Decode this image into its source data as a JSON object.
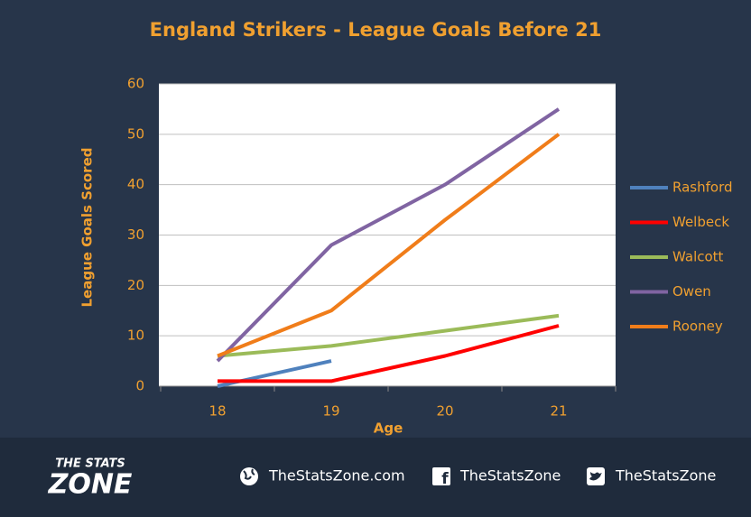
{
  "chart_data": {
    "type": "line",
    "title": "England Strikers - League Goals Before 21",
    "x_label": "Age",
    "y_label": "League Goals Scored",
    "categories": [
      "18",
      "19",
      "20",
      "21"
    ],
    "series": [
      {
        "name": "Rashford",
        "color": "#4f81bd",
        "values": [
          0,
          5,
          null,
          null
        ]
      },
      {
        "name": "Welbeck",
        "color": "#ff0000",
        "values": [
          1,
          1,
          6,
          12
        ]
      },
      {
        "name": "Walcott",
        "color": "#9bbb59",
        "values": [
          6,
          8,
          11,
          14
        ]
      },
      {
        "name": "Owen",
        "color": "#8064a2",
        "values": [
          5,
          28,
          40,
          55
        ]
      },
      {
        "name": "Rooney",
        "color": "#f07d1a",
        "values": [
          6,
          15,
          33,
          50
        ]
      }
    ],
    "ylim": [
      0,
      60
    ],
    "yticks": [
      0,
      10,
      20,
      30,
      40,
      50,
      60
    ],
    "grid": true,
    "legend": "right"
  },
  "footer": {
    "logo_top": "THE STATS",
    "logo_bottom": "ZONE",
    "website": "TheStatsZone.com",
    "facebook": "TheStatsZone",
    "twitter": "TheStatsZone"
  }
}
